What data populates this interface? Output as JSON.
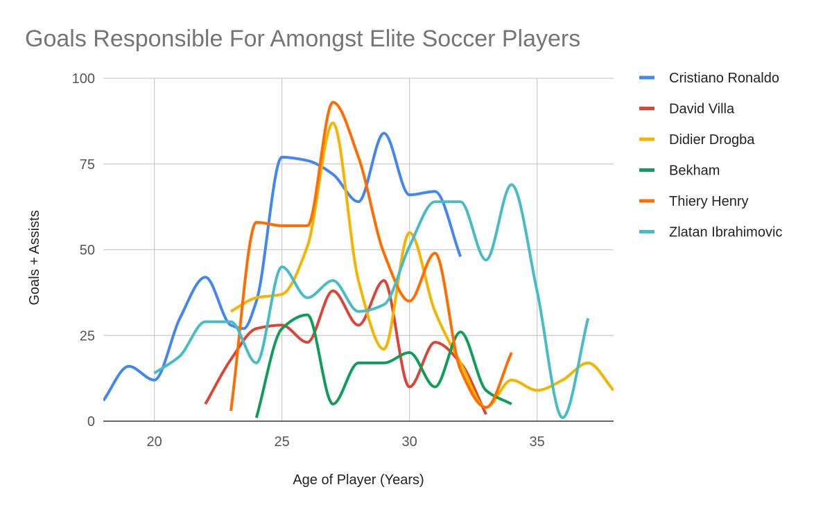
{
  "chart_data": {
    "type": "line",
    "title": "Goals Responsible For Amongst Elite Soccer Players",
    "xlabel": "Age of Player (Years)",
    "ylabel": "Goals + Assists",
    "xlim": [
      18,
      38
    ],
    "ylim": [
      0,
      100
    ],
    "x_ticks": [
      20,
      25,
      30,
      35
    ],
    "y_ticks": [
      0,
      25,
      50,
      75,
      100
    ],
    "grid": true,
    "smooth": true,
    "legend_position": "right",
    "series": [
      {
        "name": "Cristiano Ronaldo",
        "color": "#4285f4",
        "points": [
          [
            18,
            6
          ],
          [
            19,
            16
          ],
          [
            20,
            12
          ],
          [
            21,
            30
          ],
          [
            22,
            42
          ],
          [
            23,
            28
          ],
          [
            23.5,
            27
          ],
          [
            24,
            35
          ],
          [
            25,
            77
          ],
          [
            26,
            76
          ],
          [
            27,
            72
          ],
          [
            28,
            64
          ],
          [
            29,
            84
          ],
          [
            30,
            66
          ],
          [
            31,
            67
          ],
          [
            32,
            48
          ]
        ]
      },
      {
        "name": "David Villa",
        "color": "#db4437",
        "points": [
          [
            22,
            5
          ],
          [
            23,
            18
          ],
          [
            24,
            27
          ],
          [
            25,
            28
          ],
          [
            26,
            23
          ],
          [
            27,
            38
          ],
          [
            28,
            28
          ],
          [
            29,
            41
          ],
          [
            30,
            10
          ],
          [
            31,
            23
          ],
          [
            32,
            17
          ],
          [
            33,
            2
          ]
        ]
      },
      {
        "name": "Didier Drogba",
        "color": "#f4b400",
        "points": [
          [
            23,
            32
          ],
          [
            24,
            36
          ],
          [
            25,
            37
          ],
          [
            26,
            51
          ],
          [
            27,
            87
          ],
          [
            28,
            41
          ],
          [
            29,
            21
          ],
          [
            30,
            55
          ],
          [
            31,
            32
          ],
          [
            32,
            17
          ],
          [
            33,
            4
          ],
          [
            34,
            12
          ],
          [
            35,
            9
          ],
          [
            36,
            12
          ],
          [
            37,
            17
          ],
          [
            38,
            9
          ]
        ]
      },
      {
        "name": "Bekham",
        "color": "#0f9d58",
        "points": [
          [
            24,
            1
          ],
          [
            25,
            27
          ],
          [
            26,
            31
          ],
          [
            27,
            5
          ],
          [
            28,
            17
          ],
          [
            29,
            17
          ],
          [
            30,
            20
          ],
          [
            31,
            10
          ],
          [
            32,
            26
          ],
          [
            33,
            9
          ],
          [
            34,
            5
          ]
        ]
      },
      {
        "name": "Thiery Henry",
        "color": "#ff6d00",
        "points": [
          [
            23,
            3
          ],
          [
            24,
            58
          ],
          [
            25,
            57
          ],
          [
            26,
            57
          ],
          [
            27,
            93
          ],
          [
            28,
            77
          ],
          [
            29,
            49
          ],
          [
            30,
            35
          ],
          [
            31,
            49
          ],
          [
            32,
            15
          ],
          [
            33,
            4
          ],
          [
            34,
            20
          ]
        ]
      },
      {
        "name": "Zlatan Ibrahimovic",
        "color": "#46bdc6",
        "points": [
          [
            20,
            14
          ],
          [
            21,
            19
          ],
          [
            22,
            29
          ],
          [
            23,
            29
          ],
          [
            24,
            17
          ],
          [
            25,
            45
          ],
          [
            26,
            36
          ],
          [
            27,
            41
          ],
          [
            28,
            32
          ],
          [
            29,
            34
          ],
          [
            30,
            51
          ],
          [
            31,
            64
          ],
          [
            32,
            64
          ],
          [
            33,
            47
          ],
          [
            34,
            69
          ],
          [
            35,
            38
          ],
          [
            36,
            1
          ],
          [
            37,
            30
          ]
        ]
      }
    ]
  }
}
